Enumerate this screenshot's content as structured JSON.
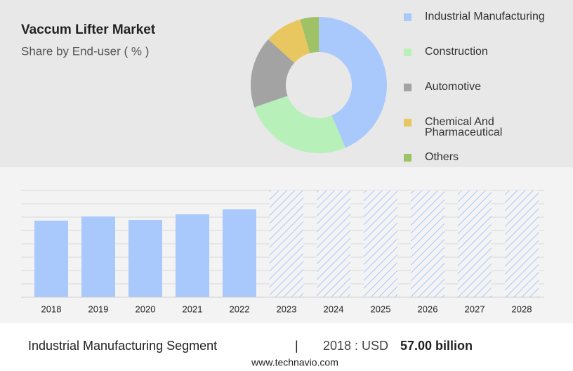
{
  "chart_data": [
    {
      "type": "donut",
      "title": "Vaccum Lifter Market",
      "subtitle": "Share by End-user ( % )",
      "categories": [
        "Industrial Manufacturing",
        "Construction",
        "Automotive",
        "Chemical And Pharmaceutical",
        "Others"
      ],
      "values": [
        43.6,
        26.1,
        17,
        8.9,
        4.4
      ],
      "colors": [
        "#a9c8fb",
        "#b7f0b9",
        "#a3a3a3",
        "#e8c660",
        "#a0c266"
      ],
      "legend": "right"
    },
    {
      "type": "bar",
      "categories": [
        "2018",
        "2019",
        "2020",
        "2021",
        "2022",
        "2023",
        "2024",
        "2025",
        "2026",
        "2027",
        "2028"
      ],
      "values": [
        57,
        60.1,
        57.5,
        61.7,
        65.4,
        null,
        null,
        null,
        null,
        null,
        null
      ],
      "color": "#a9c8fb",
      "grid": true
    }
  ],
  "footer": {
    "segment": "Industrial Manufacturing Segment",
    "separator": "|",
    "period": "2018 : USD",
    "value": "57.00 billion"
  },
  "website": "www.technavio.com"
}
